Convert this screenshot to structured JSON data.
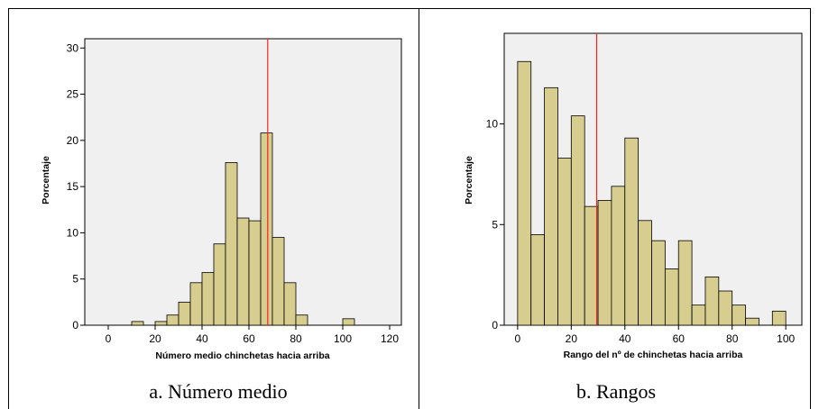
{
  "chart_data": [
    {
      "type": "bar",
      "xlabel": "Número medio chinchetas hacia arriba",
      "ylabel": "Porcentaje",
      "caption": "a. Número medio",
      "xlim": [
        -10,
        125
      ],
      "ylim": [
        0,
        31
      ],
      "xticks": [
        0,
        20,
        40,
        60,
        80,
        100,
        120
      ],
      "yticks": [
        0,
        5,
        10,
        15,
        20,
        25,
        30
      ],
      "bin_width": 5,
      "bins": [
        {
          "x": 10,
          "y": 0.4
        },
        {
          "x": 20,
          "y": 0.4
        },
        {
          "x": 25,
          "y": 1.1
        },
        {
          "x": 30,
          "y": 2.5
        },
        {
          "x": 35,
          "y": 4.6
        },
        {
          "x": 40,
          "y": 5.7
        },
        {
          "x": 45,
          "y": 8.8
        },
        {
          "x": 50,
          "y": 17.6
        },
        {
          "x": 55,
          "y": 11.6
        },
        {
          "x": 60,
          "y": 11.3
        },
        {
          "x": 65,
          "y": 20.8
        },
        {
          "x": 70,
          "y": 9.5
        },
        {
          "x": 75,
          "y": 4.6
        },
        {
          "x": 80,
          "y": 1.1
        },
        {
          "x": 100,
          "y": 0.7
        }
      ],
      "reference_line": 68,
      "colors": {
        "bar": "#d6cd8f",
        "reference": "#ff2020",
        "plot_bg": "#f0f0f0"
      },
      "grid": false
    },
    {
      "type": "bar",
      "xlabel": "Rango del nº de  chinchetas hacia arriba",
      "ylabel": "Porcentaje",
      "caption": "b. Rangos",
      "xlim": [
        -5,
        106
      ],
      "ylim": [
        0,
        14.5
      ],
      "xticks": [
        0,
        20,
        40,
        60,
        80,
        100
      ],
      "yticks": [
        0,
        5,
        10
      ],
      "bin_width": 5,
      "bins": [
        {
          "x": 0,
          "y": 13.1
        },
        {
          "x": 5,
          "y": 4.5
        },
        {
          "x": 10,
          "y": 11.8
        },
        {
          "x": 15,
          "y": 8.3
        },
        {
          "x": 20,
          "y": 10.4
        },
        {
          "x": 25,
          "y": 5.9
        },
        {
          "x": 30,
          "y": 6.2
        },
        {
          "x": 35,
          "y": 6.9
        },
        {
          "x": 40,
          "y": 9.3
        },
        {
          "x": 45,
          "y": 5.2
        },
        {
          "x": 50,
          "y": 4.2
        },
        {
          "x": 55,
          "y": 2.8
        },
        {
          "x": 60,
          "y": 4.2
        },
        {
          "x": 65,
          "y": 1.0
        },
        {
          "x": 70,
          "y": 2.4
        },
        {
          "x": 75,
          "y": 1.7
        },
        {
          "x": 80,
          "y": 1.0
        },
        {
          "x": 85,
          "y": 0.35
        },
        {
          "x": 95,
          "y": 0.7
        }
      ],
      "reference_line": 29.5,
      "colors": {
        "bar": "#d6cd8f",
        "reference": "#ff2020",
        "plot_bg": "#f0f0f0"
      },
      "grid": false
    }
  ]
}
